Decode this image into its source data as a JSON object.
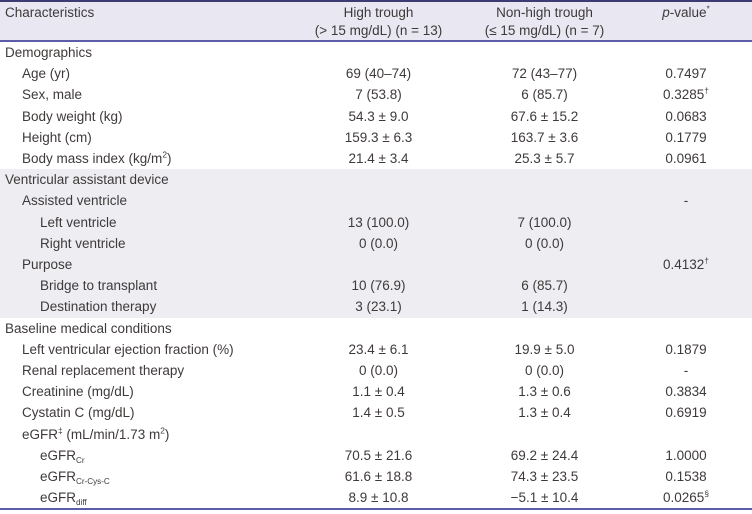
{
  "colors": {
    "text": "#3e3a39",
    "header-bg": "#e8e7f2",
    "band-bg": "#ededf2",
    "border-dark": "#3c3b72",
    "rule": "#5d5ca6",
    "page-bg": "#ffffff"
  },
  "table": {
    "columns": [
      {
        "id": "characteristics",
        "label": "Characteristics"
      },
      {
        "id": "high-trough",
        "line1": "High trough",
        "line2": "(> 15 mg/dL) (n = 13)"
      },
      {
        "id": "non-high-trough",
        "line1": "Non-high trough",
        "line2": "(≤ 15 mg/dL) (n = 7)"
      },
      {
        "id": "p-value",
        "label": "//p//-value^{*}"
      }
    ],
    "rows": [
      {
        "label": "Demographics",
        "indent": 0,
        "high": "",
        "nonhigh": "",
        "p": "",
        "shaded": false
      },
      {
        "label": "Age (yr)",
        "indent": 1,
        "high": "69 (40–74)",
        "nonhigh": "72 (43–77)",
        "p": "0.7497",
        "shaded": false
      },
      {
        "label": "Sex, male",
        "indent": 1,
        "high": "7 (53.8)",
        "nonhigh": "6 (85.7)",
        "p": "0.3285^{†}",
        "shaded": false
      },
      {
        "label": "Body weight (kg)",
        "indent": 1,
        "high": "54.3 ± 9.0",
        "nonhigh": "67.6 ± 15.2",
        "p": "0.0683",
        "shaded": false
      },
      {
        "label": "Height (cm)",
        "indent": 1,
        "high": "159.3 ± 6.3",
        "nonhigh": "163.7 ± 3.6",
        "p": "0.1779",
        "shaded": false
      },
      {
        "label": "Body mass index (kg/m^{2})",
        "indent": 1,
        "high": "21.4 ± 3.4",
        "nonhigh": "25.3 ± 5.7",
        "p": "0.0961",
        "shaded": false
      },
      {
        "label": "Ventricular assistant device",
        "indent": 0,
        "high": "",
        "nonhigh": "",
        "p": "",
        "shaded": true
      },
      {
        "label": "Assisted ventricle",
        "indent": 1,
        "high": "",
        "nonhigh": "",
        "p": "-",
        "shaded": true
      },
      {
        "label": "Left ventricle",
        "indent": 2,
        "high": "13 (100.0)",
        "nonhigh": "7 (100.0)",
        "p": "",
        "shaded": true
      },
      {
        "label": "Right ventricle",
        "indent": 2,
        "high": "0 (0.0)",
        "nonhigh": "0 (0.0)",
        "p": "",
        "shaded": true
      },
      {
        "label": "Purpose",
        "indent": 1,
        "high": "",
        "nonhigh": "",
        "p": "0.4132^{†}",
        "shaded": true
      },
      {
        "label": "Bridge to transplant",
        "indent": 2,
        "high": "10 (76.9)",
        "nonhigh": "6 (85.7)",
        "p": "",
        "shaded": true
      },
      {
        "label": "Destination therapy",
        "indent": 2,
        "high": "3 (23.1)",
        "nonhigh": "1 (14.3)",
        "p": "",
        "shaded": true
      },
      {
        "label": "Baseline medical conditions",
        "indent": 0,
        "high": "",
        "nonhigh": "",
        "p": "",
        "shaded": false
      },
      {
        "label": "Left ventricular ejection fraction (%)",
        "indent": 1,
        "high": "23.4 ± 6.1",
        "nonhigh": "19.9 ± 5.0",
        "p": "0.1879",
        "shaded": false
      },
      {
        "label": "Renal replacement therapy",
        "indent": 1,
        "high": "0 (0.0)",
        "nonhigh": "0 (0.0)",
        "p": "-",
        "shaded": false
      },
      {
        "label": "Creatinine (mg/dL)",
        "indent": 1,
        "high": "1.1 ± 0.4",
        "nonhigh": "1.3 ± 0.6",
        "p": "0.3834",
        "shaded": false
      },
      {
        "label": "Cystatin C (mg/dL)",
        "indent": 1,
        "high": "1.4 ± 0.5",
        "nonhigh": "1.3 ± 0.4",
        "p": "0.6919",
        "shaded": false
      },
      {
        "label": "eGFR^{‡} (mL/min/1.73 m^{2})",
        "indent": 1,
        "high": "",
        "nonhigh": "",
        "p": "",
        "shaded": false
      },
      {
        "label": "eGFR_{Cr}",
        "indent": 2,
        "high": "70.5 ± 21.6",
        "nonhigh": "69.2 ± 24.4",
        "p": "1.0000",
        "shaded": false
      },
      {
        "label": "eGFR_{Cr-Cys-C}",
        "indent": 2,
        "high": "61.6 ± 18.8",
        "nonhigh": "74.3 ± 23.5",
        "p": "0.1538",
        "shaded": false
      },
      {
        "label": "eGFR_{diff}",
        "indent": 2,
        "high": "8.9 ± 10.8",
        "nonhigh": "−5.1 ± 10.4",
        "p": "0.0265^{§}",
        "shaded": false
      }
    ]
  }
}
